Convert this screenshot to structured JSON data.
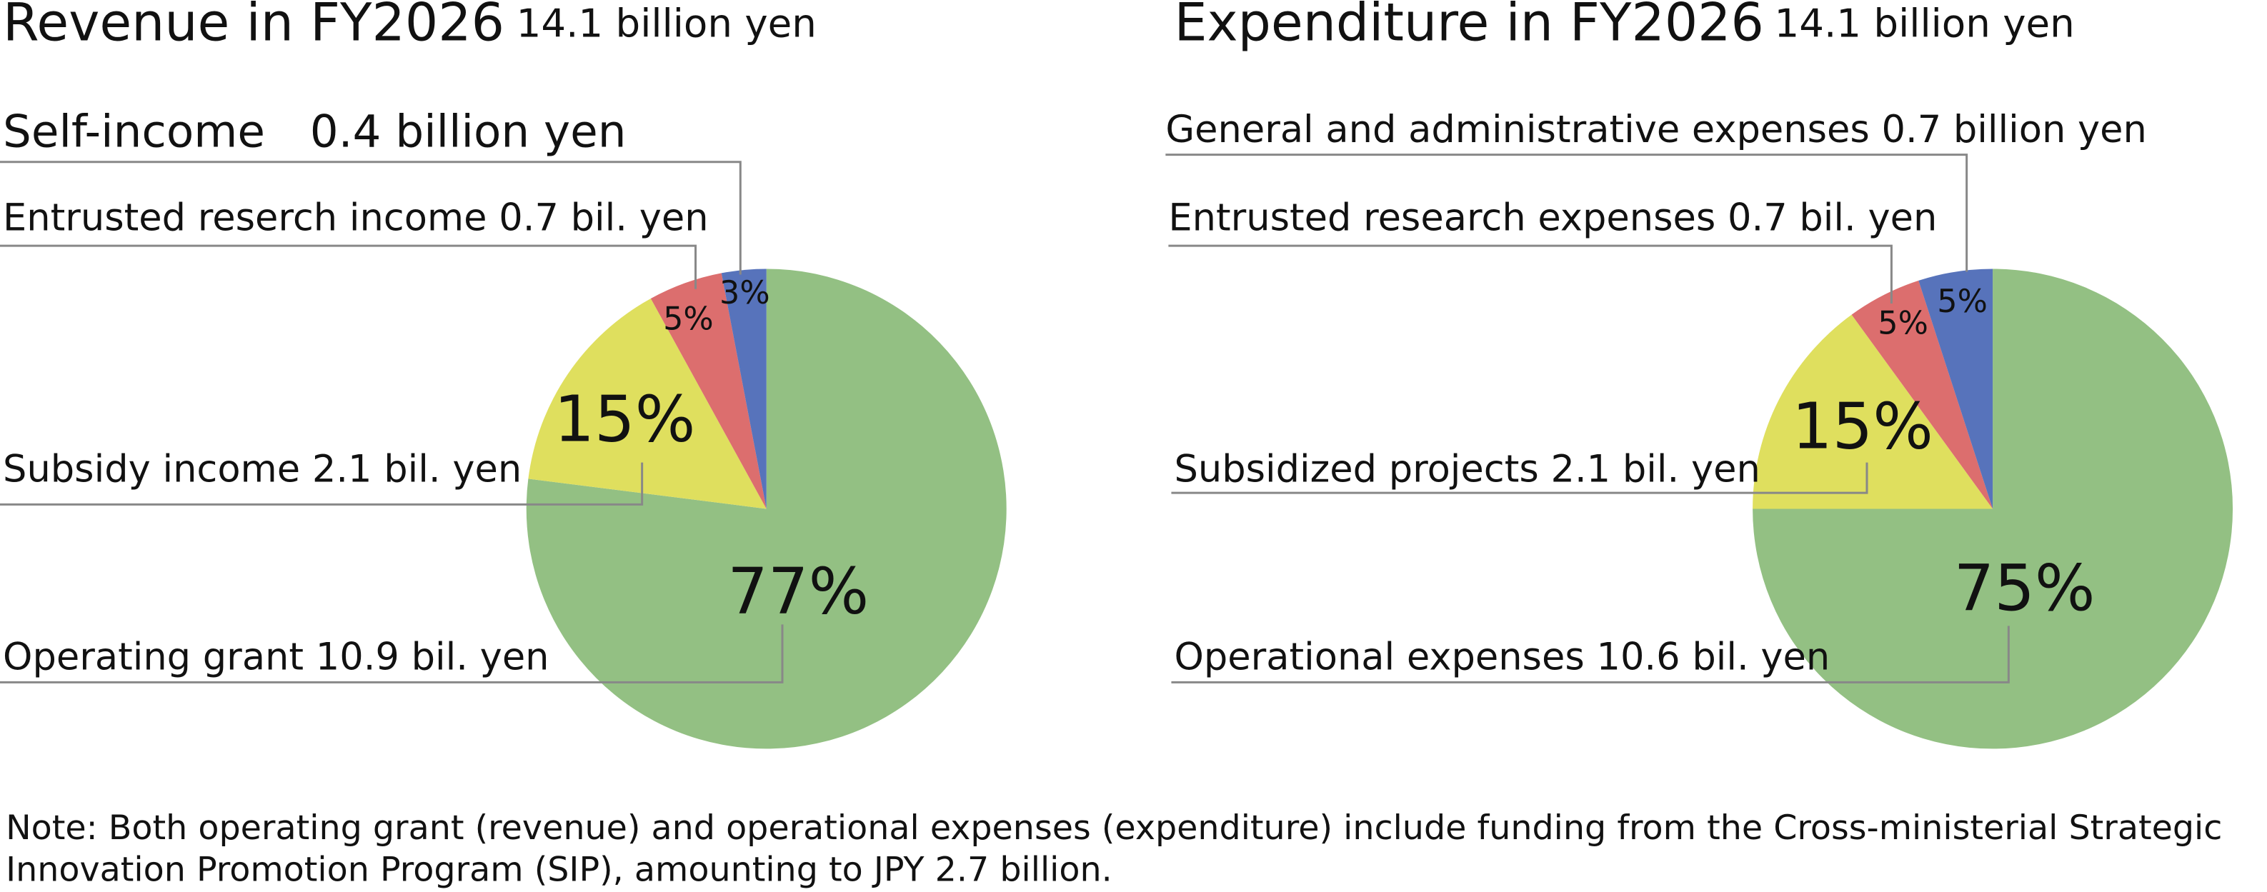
{
  "chart_data": [
    {
      "type": "pie",
      "title": "Revenue in FY2026",
      "subtitle": "14.1 billion yen",
      "categories": [
        "Operating grant 10.9 bil. yen",
        "Subsidy income 2.1 bil. yen",
        "Entrusted reserch income 0.7 bil. yen",
        "Self-income　0.4 billion yen"
      ],
      "values": [
        77,
        15,
        5,
        3
      ],
      "value_labels": [
        "77%",
        "15%",
        "5%",
        "3%"
      ],
      "colors": [
        "#93c083",
        "#dfdf5e",
        "#dc6e6e",
        "#5773bb"
      ]
    },
    {
      "type": "pie",
      "title": "Expenditure in FY2026",
      "subtitle": "14.1 billion yen",
      "categories": [
        "Operational expenses 10.6 bil. yen",
        "Subsidized projects 2.1 bil. yen",
        "Entrusted research expenses  0.7 bil. yen",
        "General and administrative expenses  0.7 billion yen"
      ],
      "values": [
        75,
        15,
        5,
        5
      ],
      "value_labels": [
        "75%",
        "15%",
        "5%",
        "5%"
      ],
      "colors": [
        "#93c083",
        "#dfdf5e",
        "#dc6e6e",
        "#5773bb"
      ]
    }
  ],
  "note": [
    "Note: Both operating grant (revenue) and operational expenses (expenditure) include funding from the Cross-ministerial Strategic",
    "Innovation Promotion Program (SIP), amounting to JPY 2.7 billion."
  ]
}
